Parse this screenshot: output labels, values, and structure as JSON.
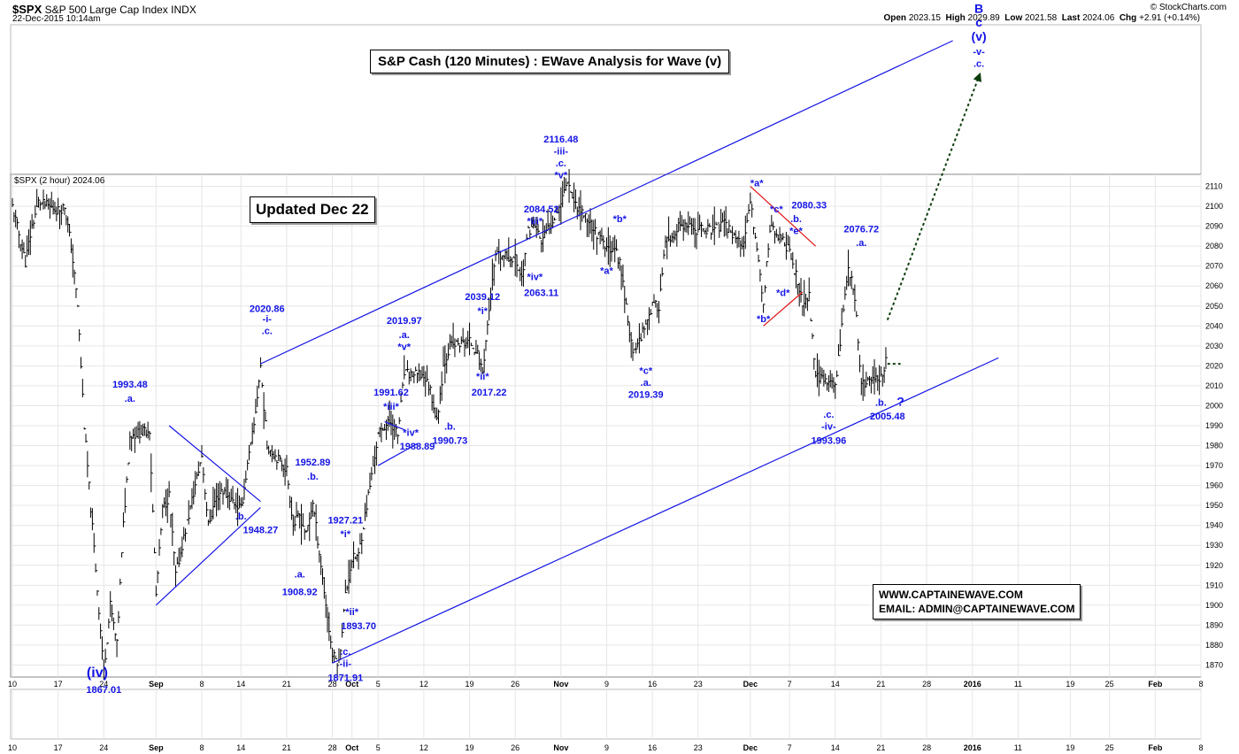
{
  "header": {
    "symbol": "$SPX",
    "name": "S&P 500 Large Cap Index",
    "exchange": "INDX",
    "date": "22-Dec-2015 10:14am",
    "copyright": "© StockCharts.com",
    "open_label": "Open",
    "open": "2023.15",
    "high_label": "High",
    "high": "2029.89",
    "low_label": "Low",
    "low": "2021.58",
    "last_label": "Last",
    "last": "2024.06",
    "chg_label": "Chg",
    "chg": "+2.91 (+0.14%)"
  },
  "legend": "$SPX (2 hour) 2024.06",
  "title_box": "S&P Cash (120 Minutes) : EWave Analysis for Wave (v)",
  "updated_box": "Updated Dec 22",
  "contact": {
    "web": "WWW.CAPTAINEWAVE.COM",
    "email": "EMAIL: ADMIN@CAPTAINEWAVE.COM"
  },
  "colors": {
    "annotation": "#1414e6",
    "trendline": "#1414e6",
    "triangle_red": "#e01414",
    "bars": "#000000",
    "grid": "#e6e6e6",
    "projection": "#0b3d0b"
  },
  "chart_data": {
    "type": "bar",
    "ylim": [
      1864,
      2116
    ],
    "y_ticks": [
      2110,
      2100,
      2090,
      2080,
      2070,
      2060,
      2050,
      2040,
      2030,
      2020,
      2010,
      2000,
      1990,
      1980,
      1970,
      1960,
      1950,
      1940,
      1930,
      1920,
      1910,
      1900,
      1890,
      1880,
      1870
    ],
    "x_ticks": [
      "10",
      "17",
      "24",
      "Sep",
      "8",
      "14",
      "21",
      "28",
      "Oct",
      "5",
      "12",
      "19",
      "26",
      "Nov",
      "9",
      "16",
      "23",
      "Dec",
      "7",
      "14",
      "21",
      "28",
      "2016",
      "11",
      "19",
      "25",
      "Feb",
      "8"
    ],
    "x_tick_dates": [
      "2015-08-10",
      "2015-08-17",
      "2015-08-24",
      "2015-09-01",
      "2015-09-08",
      "2015-09-14",
      "2015-09-21",
      "2015-09-28",
      "2015-10-01",
      "2015-10-05",
      "2015-10-12",
      "2015-10-19",
      "2015-10-26",
      "2015-11-02",
      "2015-11-09",
      "2015-11-16",
      "2015-11-23",
      "2015-12-01",
      "2015-12-07",
      "2015-12-14",
      "2015-12-21",
      "2015-12-28",
      "2016-01-04",
      "2016-01-11",
      "2016-01-19",
      "2016-01-25",
      "2016-02-01",
      "2016-02-08"
    ],
    "bold_ticks": [
      "Sep",
      "Oct",
      "Nov",
      "Dec",
      "2016",
      "Feb"
    ],
    "price_path": [
      [
        "2015-08-10",
        2100
      ],
      [
        "2015-08-11",
        2086
      ],
      [
        "2015-08-12",
        2072
      ],
      [
        "2015-08-13",
        2090
      ],
      [
        "2015-08-14",
        2102
      ],
      [
        "2015-08-17",
        2098
      ],
      [
        "2015-08-18",
        2100
      ],
      [
        "2015-08-19",
        2080
      ],
      [
        "2015-08-20",
        2050
      ],
      [
        "2015-08-21",
        1990
      ],
      [
        "2015-08-24",
        1867
      ],
      [
        "2015-08-25",
        1900
      ],
      [
        "2015-08-26",
        1880
      ],
      [
        "2015-08-27",
        1940
      ],
      [
        "2015-08-28",
        1985
      ],
      [
        "2015-08-31",
        1988
      ],
      [
        "2015-09-01",
        1905
      ],
      [
        "2015-09-02",
        1948
      ],
      [
        "2015-09-03",
        1955
      ],
      [
        "2015-09-04",
        1915
      ],
      [
        "2015-09-08",
        1975
      ],
      [
        "2015-09-09",
        1940
      ],
      [
        "2015-09-10",
        1952
      ],
      [
        "2015-09-11",
        1958
      ],
      [
        "2015-09-14",
        1948
      ],
      [
        "2015-09-15",
        1970
      ],
      [
        "2015-09-16",
        1990
      ],
      [
        "2015-09-17",
        2020
      ],
      [
        "2015-09-18",
        1980
      ],
      [
        "2015-09-21",
        1968
      ],
      [
        "2015-09-22",
        1940
      ],
      [
        "2015-09-23",
        1945
      ],
      [
        "2015-09-24",
        1935
      ],
      [
        "2015-09-25",
        1952
      ],
      [
        "2015-09-28",
        1875
      ],
      [
        "2015-09-29",
        1871
      ],
      [
        "2015-09-30",
        1905
      ],
      [
        "2015-10-01",
        1923
      ],
      [
        "2015-10-02",
        1925
      ],
      [
        "2015-10-05",
        1985
      ],
      [
        "2015-10-06",
        1990
      ],
      [
        "2015-10-07",
        1992
      ],
      [
        "2015-10-08",
        1985
      ],
      [
        "2015-10-09",
        2016
      ],
      [
        "2015-10-12",
        2015
      ],
      [
        "2015-10-13",
        2008
      ],
      [
        "2015-10-14",
        1992
      ],
      [
        "2015-10-15",
        2020
      ],
      [
        "2015-10-16",
        2030
      ],
      [
        "2015-10-19",
        2032
      ],
      [
        "2015-10-20",
        2028
      ],
      [
        "2015-10-21",
        2017
      ],
      [
        "2015-10-22",
        2048
      ],
      [
        "2015-10-23",
        2075
      ],
      [
        "2015-10-26",
        2074
      ],
      [
        "2015-10-27",
        2064
      ],
      [
        "2015-10-28",
        2088
      ],
      [
        "2015-10-29",
        2090
      ],
      [
        "2015-10-30",
        2082
      ],
      [
        "2015-11-02",
        2102
      ],
      [
        "2015-11-03",
        2114
      ],
      [
        "2015-11-04",
        2102
      ],
      [
        "2015-11-05",
        2098
      ],
      [
        "2015-11-06",
        2094
      ],
      [
        "2015-11-09",
        2078
      ],
      [
        "2015-11-10",
        2080
      ],
      [
        "2015-11-11",
        2072
      ],
      [
        "2015-11-12",
        2050
      ],
      [
        "2015-11-13",
        2025
      ],
      [
        "2015-11-16",
        2050
      ],
      [
        "2015-11-17",
        2050
      ],
      [
        "2015-11-18",
        2082
      ],
      [
        "2015-11-19",
        2082
      ],
      [
        "2015-11-20",
        2090
      ],
      [
        "2015-11-23",
        2088
      ],
      [
        "2015-11-24",
        2089
      ],
      [
        "2015-11-25",
        2088
      ],
      [
        "2015-11-27",
        2091
      ],
      [
        "2015-11-30",
        2080
      ],
      [
        "2015-12-01",
        2102
      ],
      [
        "2015-12-02",
        2080
      ],
      [
        "2015-12-03",
        2050
      ],
      [
        "2015-12-04",
        2090
      ],
      [
        "2015-12-07",
        2078
      ],
      [
        "2015-12-08",
        2065
      ],
      [
        "2015-12-09",
        2050
      ],
      [
        "2015-12-10",
        2055
      ],
      [
        "2015-12-11",
        2015
      ],
      [
        "2015-12-14",
        2010
      ],
      [
        "2015-12-15",
        2040
      ],
      [
        "2015-12-16",
        2070
      ],
      [
        "2015-12-17",
        2055
      ],
      [
        "2015-12-18",
        2010
      ],
      [
        "2015-12-21",
        2015
      ],
      [
        "2015-12-22",
        2024
      ]
    ],
    "annotations": [
      {
        "text": "2020.86",
        "date": "2015-09-18",
        "y": 2047
      },
      {
        "text": "-i-",
        "date": "2015-09-18",
        "y": 2042
      },
      {
        "text": ".c.",
        "date": "2015-09-18",
        "y": 2036
      },
      {
        "text": "1993.48",
        "date": "2015-08-28",
        "y": 2009
      },
      {
        "text": ".a.",
        "date": "2015-08-28",
        "y": 2002
      },
      {
        "text": ".b.",
        "date": "2015-09-14",
        "y": 1943
      },
      {
        "text": "1948.27",
        "date": "2015-09-17",
        "y": 1936
      },
      {
        "text": "(iv)",
        "date": "2015-08-23",
        "y": 1864,
        "size": 16
      },
      {
        "text": "1867.01",
        "date": "2015-08-24",
        "y": 1856
      },
      {
        "text": "1952.89",
        "date": "2015-09-25",
        "y": 1970
      },
      {
        "text": ".b.",
        "date": "2015-09-25",
        "y": 1963
      },
      {
        "text": ".a.",
        "date": "2015-09-23",
        "y": 1914
      },
      {
        "text": "1908.92",
        "date": "2015-09-23",
        "y": 1905
      },
      {
        "text": "1927.21",
        "date": "2015-09-30",
        "y": 1941
      },
      {
        "text": "*i*",
        "date": "2015-09-30",
        "y": 1934
      },
      {
        "text": "*ii*",
        "date": "2015-10-01",
        "y": 1895
      },
      {
        "text": "1893.70",
        "date": "2015-10-02",
        "y": 1888
      },
      {
        "text": ".c.",
        "date": "2015-09-30",
        "y": 1875
      },
      {
        "text": "-ii-",
        "date": "2015-09-30",
        "y": 1869
      },
      {
        "text": "1871.91",
        "date": "2015-09-30",
        "y": 1862
      },
      {
        "text": "2019.97",
        "date": "2015-10-09",
        "y": 2041
      },
      {
        "text": ".a.",
        "date": "2015-10-09",
        "y": 2034
      },
      {
        "text": "*v*",
        "date": "2015-10-09",
        "y": 2028
      },
      {
        "text": "1991.62",
        "date": "2015-10-07",
        "y": 2005
      },
      {
        "text": "*iii*",
        "date": "2015-10-07",
        "y": 1998
      },
      {
        "text": "*iv*",
        "date": "2015-10-10",
        "y": 1985
      },
      {
        "text": "1988.89",
        "date": "2015-10-11",
        "y": 1978
      },
      {
        "text": ".b.",
        "date": "2015-10-16",
        "y": 1988
      },
      {
        "text": "1990.73",
        "date": "2015-10-16",
        "y": 1981
      },
      {
        "text": "2039.12",
        "date": "2015-10-21",
        "y": 2053
      },
      {
        "text": "*i*",
        "date": "2015-10-21",
        "y": 2046
      },
      {
        "text": "*ii*",
        "date": "2015-10-21",
        "y": 2013
      },
      {
        "text": "2017.22",
        "date": "2015-10-22",
        "y": 2005
      },
      {
        "text": "2084.52",
        "date": "2015-10-30",
        "y": 2097
      },
      {
        "text": "*iii*",
        "date": "2015-10-29",
        "y": 2091
      },
      {
        "text": "*iv*",
        "date": "2015-10-29",
        "y": 2063
      },
      {
        "text": "2063.11",
        "date": "2015-10-30",
        "y": 2055
      },
      {
        "text": "2116.48",
        "date": "2015-11-02",
        "y": 2132
      },
      {
        "text": "-iii-",
        "date": "2015-11-02",
        "y": 2126
      },
      {
        "text": ".c.",
        "date": "2015-11-02",
        "y": 2120
      },
      {
        "text": "*v*",
        "date": "2015-11-02",
        "y": 2114
      },
      {
        "text": "*b*",
        "date": "2015-11-11",
        "y": 2092
      },
      {
        "text": "*a*",
        "date": "2015-11-09",
        "y": 2066
      },
      {
        "text": "*c*",
        "date": "2015-11-15",
        "y": 2016
      },
      {
        "text": ".a.",
        "date": "2015-11-15",
        "y": 2010
      },
      {
        "text": "2019.39",
        "date": "2015-11-15",
        "y": 2004
      },
      {
        "text": "*a*",
        "date": "2015-12-02",
        "y": 2110
      },
      {
        "text": "*c*",
        "date": "2015-12-05",
        "y": 2097
      },
      {
        "text": "2080.33",
        "date": "2015-12-10",
        "y": 2099
      },
      {
        "text": ".b.",
        "date": "2015-12-08",
        "y": 2092
      },
      {
        "text": "*e*",
        "date": "2015-12-08",
        "y": 2086
      },
      {
        "text": "*b*",
        "date": "2015-12-03",
        "y": 2042
      },
      {
        "text": "*d*",
        "date": "2015-12-06",
        "y": 2055
      },
      {
        "text": "2076.72",
        "date": "2015-12-18",
        "y": 2087
      },
      {
        "text": ".a.",
        "date": "2015-12-18",
        "y": 2080
      },
      {
        "text": ".c.",
        "date": "2015-12-13",
        "y": 1994
      },
      {
        "text": "-iv-",
        "date": "2015-12-13",
        "y": 1988
      },
      {
        "text": "1993.96",
        "date": "2015-12-13",
        "y": 1981
      },
      {
        "text": ".b.",
        "date": "2015-12-21",
        "y": 2000
      },
      {
        "text": "2005.48",
        "date": "2015-12-22",
        "y": 1993
      },
      {
        "text": "?",
        "date": "2015-12-24",
        "y": 2000,
        "size": 14
      },
      {
        "text": "B",
        "date": "2016-01-05",
        "y": 2197,
        "size": 14
      },
      {
        "text": "c",
        "date": "2016-01-05",
        "y": 2190,
        "size": 14
      },
      {
        "text": "(v)",
        "date": "2016-01-05",
        "y": 2183,
        "size": 14
      },
      {
        "text": "-v-",
        "date": "2016-01-05",
        "y": 2176
      },
      {
        "text": ".c.",
        "date": "2016-01-05",
        "y": 2170
      }
    ],
    "lines": [
      {
        "color": "blue",
        "from": [
          "2015-09-17",
          2021
        ],
        "to": [
          "2016-01-01",
          2183
        ]
      },
      {
        "color": "blue",
        "from": [
          "2015-09-28",
          1871
        ],
        "to": [
          "2016-01-08",
          2024
        ]
      },
      {
        "color": "blue",
        "from": [
          "2015-09-01",
          1900
        ],
        "to": [
          "2015-09-17",
          1949
        ]
      },
      {
        "color": "blue",
        "from": [
          "2015-09-03",
          1990
        ],
        "to": [
          "2015-09-17",
          1952
        ]
      },
      {
        "color": "blue",
        "from": [
          "2015-10-05",
          1970
        ],
        "to": [
          "2015-10-11",
          1981
        ]
      },
      {
        "color": "blue",
        "from": [
          "2015-10-06",
          1992
        ],
        "to": [
          "2015-10-09",
          1988
        ]
      },
      {
        "color": "red",
        "from": [
          "2015-12-01",
          2110
        ],
        "to": [
          "2015-12-11",
          2080
        ]
      },
      {
        "color": "red",
        "from": [
          "2015-12-03",
          2040
        ],
        "to": [
          "2015-12-09",
          2057
        ]
      },
      {
        "color": "green",
        "dashed": true,
        "from": [
          "2015-12-22",
          2043
        ],
        "to": [
          "2016-01-05",
          2165
        ],
        "arrow": true
      },
      {
        "color": "green",
        "dashed": true,
        "from": [
          "2015-12-22",
          2021
        ],
        "to": [
          "2015-12-24",
          2021
        ]
      }
    ]
  }
}
